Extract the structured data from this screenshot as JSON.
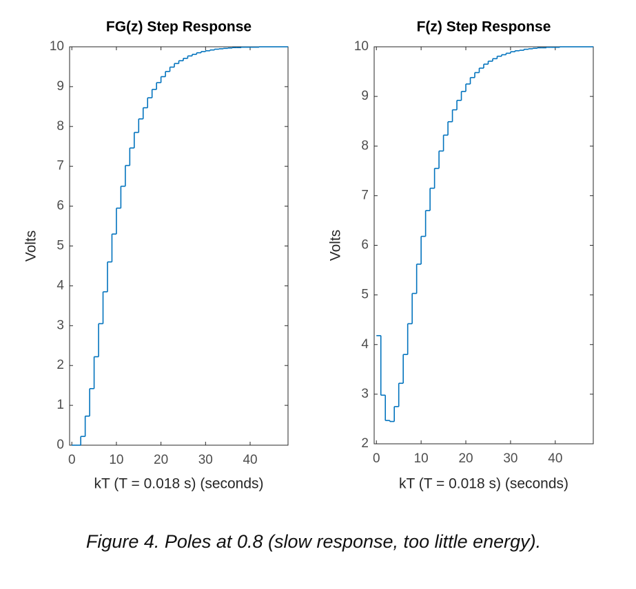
{
  "chart_data": [
    {
      "type": "step",
      "title": "FG(z) Step Response",
      "x_label": "kT (T = 0.018 s) (seconds)",
      "y_label": "Volts",
      "x": [
        0,
        1,
        2,
        3,
        4,
        5,
        6,
        7,
        8,
        9,
        10,
        11,
        12,
        13,
        14,
        15,
        16,
        17,
        18,
        19,
        20,
        21,
        22,
        23,
        24,
        25,
        26,
        27,
        28,
        29,
        30,
        31,
        32,
        33,
        34,
        35,
        36,
        37,
        38,
        39,
        40,
        41,
        42,
        43,
        44,
        45,
        46,
        47,
        48
      ],
      "series": [
        {
          "color": "#0072bd",
          "values": [
            0,
            0,
            0.22,
            0.73,
            1.42,
            2.22,
            3.05,
            3.85,
            4.6,
            5.3,
            5.95,
            6.5,
            7.02,
            7.46,
            7.85,
            8.19,
            8.47,
            8.72,
            8.93,
            9.1,
            9.25,
            9.38,
            9.49,
            9.58,
            9.65,
            9.71,
            9.77,
            9.81,
            9.85,
            9.88,
            9.9,
            9.92,
            9.94,
            9.95,
            9.96,
            9.97,
            9.98,
            9.98,
            9.99,
            9.99,
            9.99,
            9.99,
            10,
            10,
            10,
            10,
            10,
            10,
            10
          ]
        }
      ],
      "xlim": [
        -0.5,
        48.5
      ],
      "xticks": [
        0,
        10,
        20,
        30,
        40
      ],
      "ylim": [
        0,
        10
      ],
      "yticks": [
        0,
        1,
        2,
        3,
        4,
        5,
        6,
        7,
        8,
        9,
        10
      ]
    },
    {
      "type": "step",
      "title": "F(z) Step Response",
      "x_label": "kT (T = 0.018 s) (seconds)",
      "y_label": "Volts",
      "x": [
        0,
        1,
        2,
        3,
        4,
        5,
        6,
        7,
        8,
        9,
        10,
        11,
        12,
        13,
        14,
        15,
        16,
        17,
        18,
        19,
        20,
        21,
        22,
        23,
        24,
        25,
        26,
        27,
        28,
        29,
        30,
        31,
        32,
        33,
        34,
        35,
        36,
        37,
        38,
        39,
        40,
        41,
        42,
        43,
        44,
        45,
        46,
        47,
        48
      ],
      "series": [
        {
          "color": "#0072bd",
          "values": [
            4.18,
            2.98,
            2.47,
            2.45,
            2.75,
            3.22,
            3.8,
            4.42,
            5.03,
            5.62,
            6.18,
            6.7,
            7.15,
            7.55,
            7.9,
            8.22,
            8.49,
            8.73,
            8.92,
            9.1,
            9.25,
            9.38,
            9.48,
            9.57,
            9.65,
            9.71,
            9.76,
            9.81,
            9.84,
            9.87,
            9.9,
            9.92,
            9.93,
            9.95,
            9.96,
            9.97,
            9.98,
            9.98,
            9.99,
            9.99,
            9.99,
            10,
            10,
            10,
            10,
            10,
            10,
            10,
            10
          ]
        }
      ],
      "xlim": [
        -0.5,
        48.5
      ],
      "xticks": [
        0,
        10,
        20,
        30,
        40
      ],
      "ylim": [
        2,
        10
      ],
      "yticks": [
        2,
        3,
        4,
        5,
        6,
        7,
        8,
        9,
        10
      ]
    }
  ],
  "caption": "Figure 4. Poles at 0.8 (slow response, too little energy)."
}
